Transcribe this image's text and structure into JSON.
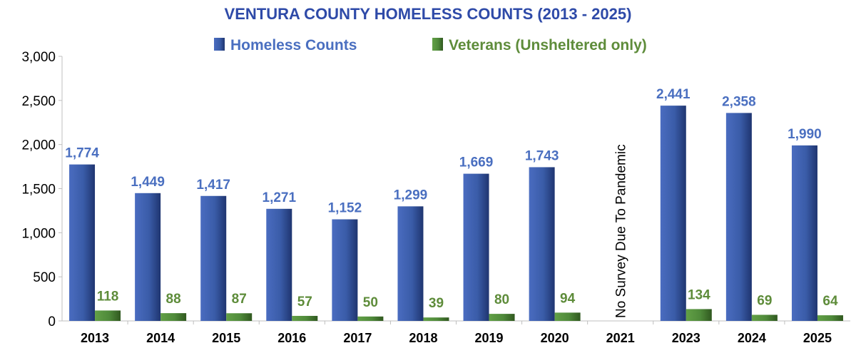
{
  "chart_data": {
    "type": "bar",
    "title": "VENTURA COUNTY HOMELESS COUNTS (2013 - 2025)",
    "categories": [
      "2013",
      "2014",
      "2015",
      "2016",
      "2017",
      "2018",
      "2019",
      "2020",
      "2021",
      "2023",
      "2024",
      "2025"
    ],
    "series": [
      {
        "name": "Homeless Counts",
        "color": "#3a5ca8",
        "label_color": "#4a6fc0",
        "values": [
          1774,
          1449,
          1417,
          1271,
          1152,
          1299,
          1669,
          1743,
          null,
          2441,
          2358,
          1990
        ],
        "labels": [
          "1,774",
          "1,449",
          "1,417",
          "1,271",
          "1,152",
          "1,299",
          "1,669",
          "1,743",
          "",
          "2,441",
          "2,358",
          "1,990"
        ]
      },
      {
        "name": "Veterans (Unsheltered only)",
        "color": "#4f8a3a",
        "label_color": "#5e8c3a",
        "values": [
          118,
          88,
          87,
          57,
          50,
          39,
          80,
          94,
          null,
          134,
          69,
          64
        ],
        "labels": [
          "118",
          "88",
          "87",
          "57",
          "50",
          "39",
          "80",
          "94",
          "",
          "134",
          "69",
          "64"
        ]
      }
    ],
    "ylim": [
      0,
      3000
    ],
    "yticks": [
      0,
      500,
      1000,
      1500,
      2000,
      2500,
      3000
    ],
    "ytick_labels": [
      "0",
      "500",
      "1,000",
      "1,500",
      "2,000",
      "2,500",
      "3,000"
    ],
    "grid": false,
    "legend_position": "top-center",
    "annotations": [
      {
        "category": "2021",
        "text": "No Survey Due To Pandemic",
        "orientation": "vertical"
      }
    ]
  }
}
